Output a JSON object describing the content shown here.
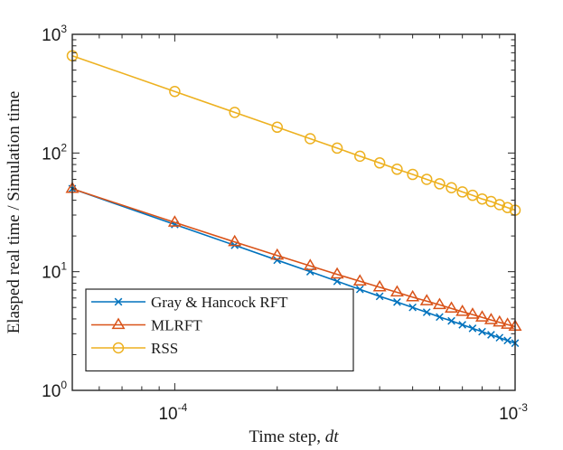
{
  "chart_data": {
    "type": "line",
    "xscale": "log",
    "yscale": "log",
    "xlim": [
      5e-05,
      0.001
    ],
    "ylim": [
      1,
      1000
    ],
    "xlabel": "Time step, ",
    "xlabel_var": "dt",
    "ylabel": "Elasped real time / Simulation time",
    "x_ticks": [
      {
        "value": 0.0001,
        "base": "10",
        "exp": "-4"
      },
      {
        "value": 0.001,
        "base": "10",
        "exp": "-3"
      }
    ],
    "y_ticks": [
      {
        "value": 1,
        "base": "10",
        "exp": "0"
      },
      {
        "value": 10,
        "base": "10",
        "exp": "1"
      },
      {
        "value": 100,
        "base": "10",
        "exp": "2"
      },
      {
        "value": 1000,
        "base": "10",
        "exp": "3"
      }
    ],
    "grid": false,
    "legend_position": "bottom-left",
    "x": [
      5e-05,
      0.0001,
      0.00015,
      0.0002,
      0.00025,
      0.0003,
      0.00035,
      0.0004,
      0.00045,
      0.0005,
      0.00055,
      0.0006,
      0.00065,
      0.0007,
      0.00075,
      0.0008,
      0.00085,
      0.0009,
      0.00095,
      0.001
    ],
    "series": [
      {
        "name": "Gray & Hancock RFT",
        "color": "#0072BD",
        "marker": "x",
        "values": [
          50,
          25,
          16.7,
          12.5,
          10,
          8.3,
          7.1,
          6.2,
          5.55,
          5.0,
          4.55,
          4.15,
          3.85,
          3.57,
          3.33,
          3.12,
          2.94,
          2.78,
          2.63,
          2.5
        ]
      },
      {
        "name": "MLRFT",
        "color": "#D95319",
        "marker": "triangle",
        "values": [
          50,
          26,
          17.8,
          13.7,
          11.2,
          9.5,
          8.3,
          7.4,
          6.7,
          6.1,
          5.65,
          5.25,
          4.9,
          4.6,
          4.35,
          4.12,
          3.92,
          3.74,
          3.58,
          3.45
        ]
      },
      {
        "name": "RSS",
        "color": "#EDB120",
        "marker": "circle",
        "values": [
          660,
          330,
          220,
          165,
          132,
          110,
          94,
          82.5,
          73,
          66,
          60,
          55,
          51,
          47,
          44,
          41,
          39,
          36.7,
          34.7,
          33
        ]
      }
    ]
  }
}
